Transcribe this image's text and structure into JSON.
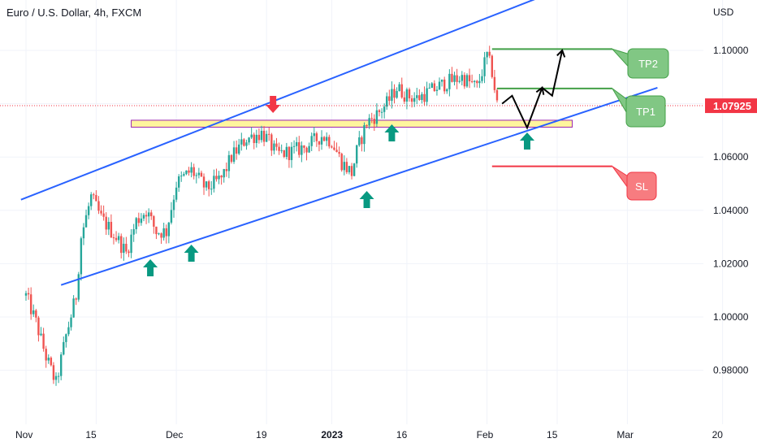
{
  "title": "Euro / U.S. Dollar, 4h, FXCM",
  "currency": "USD",
  "chart_data": {
    "type": "candlestick",
    "symbol": "Euro / U.S. Dollar",
    "timeframe": "4h",
    "source": "FXCM",
    "ylim": [
      0.966,
      1.114
    ],
    "y_ticks": [
      "1.10000",
      "1.08000",
      "1.06000",
      "1.04000",
      "1.02000",
      "1.00000",
      "0.98000"
    ],
    "y_tick_values": [
      1.1,
      1.08,
      1.06,
      1.04,
      1.02,
      1.0,
      0.98
    ],
    "x_ticks": [
      "Nov",
      "15",
      "Dec",
      "19",
      "2023",
      "16",
      "Feb",
      "15",
      "Mar",
      "20"
    ],
    "x_tick_bold": [
      "2023"
    ],
    "x_tick_days": [
      0,
      14,
      30,
      48,
      61,
      76,
      92,
      106,
      120,
      139
    ],
    "current_price": "1.07925",
    "current_price_value": 1.07925,
    "price_path": [
      [
        0,
        1.008
      ],
      [
        2,
        0.998
      ],
      [
        4,
        0.985
      ],
      [
        6,
        0.975
      ],
      [
        8,
        0.993
      ],
      [
        10,
        1.008
      ],
      [
        11,
        1.03
      ],
      [
        13,
        1.045
      ],
      [
        15,
        1.037
      ],
      [
        18,
        1.03
      ],
      [
        20,
        1.024
      ],
      [
        22,
        1.036
      ],
      [
        24,
        1.04
      ],
      [
        26,
        1.032
      ],
      [
        28,
        1.032
      ],
      [
        30,
        1.05
      ],
      [
        33,
        1.055
      ],
      [
        36,
        1.048
      ],
      [
        39,
        1.052
      ],
      [
        41,
        1.06
      ],
      [
        44,
        1.067
      ],
      [
        47,
        1.069
      ],
      [
        48,
        1.067
      ],
      [
        50,
        1.061
      ],
      [
        53,
        1.062
      ],
      [
        56,
        1.064
      ],
      [
        59,
        1.068
      ],
      [
        61,
        1.066
      ],
      [
        63,
        1.058
      ],
      [
        65,
        1.054
      ],
      [
        66,
        1.062
      ],
      [
        68,
        1.073
      ],
      [
        70,
        1.076
      ],
      [
        72,
        1.08
      ],
      [
        74,
        1.086
      ],
      [
        76,
        1.083
      ],
      [
        78,
        1.082
      ],
      [
        81,
        1.085
      ],
      [
        84,
        1.088
      ],
      [
        87,
        1.09
      ],
      [
        90,
        1.086
      ],
      [
        92,
        1.098
      ],
      [
        93,
        1.092
      ],
      [
        94,
        1.08
      ]
    ],
    "annotations": {
      "channel_upper": [
        [
          -1,
          1.044
        ],
        [
          119,
          1.132
        ]
      ],
      "channel_lower": [
        [
          7,
          1.012
        ],
        [
          126,
          1.086
        ]
      ],
      "zone": {
        "from_day": 21,
        "to_day": 109,
        "low": 1.0712,
        "high": 1.0738
      },
      "tp2": {
        "label": "TP2",
        "level": 1.1005,
        "from_day": 93,
        "to_day": 117
      },
      "tp1": {
        "label": "TP1",
        "level": 1.0857,
        "from_day": 94,
        "to_day": 117
      },
      "sl": {
        "label": "SL",
        "level": 1.0565,
        "from_day": 93,
        "to_day": 117
      },
      "down_arrow_day": 48,
      "up_arrow_days": [
        24,
        33,
        68,
        73,
        100
      ],
      "projection": [
        [
          95,
          1.08
        ],
        [
          97,
          1.083
        ],
        [
          100,
          1.071
        ],
        [
          103,
          1.086
        ],
        [
          105,
          1.083
        ],
        [
          107,
          1.1
        ]
      ]
    }
  }
}
